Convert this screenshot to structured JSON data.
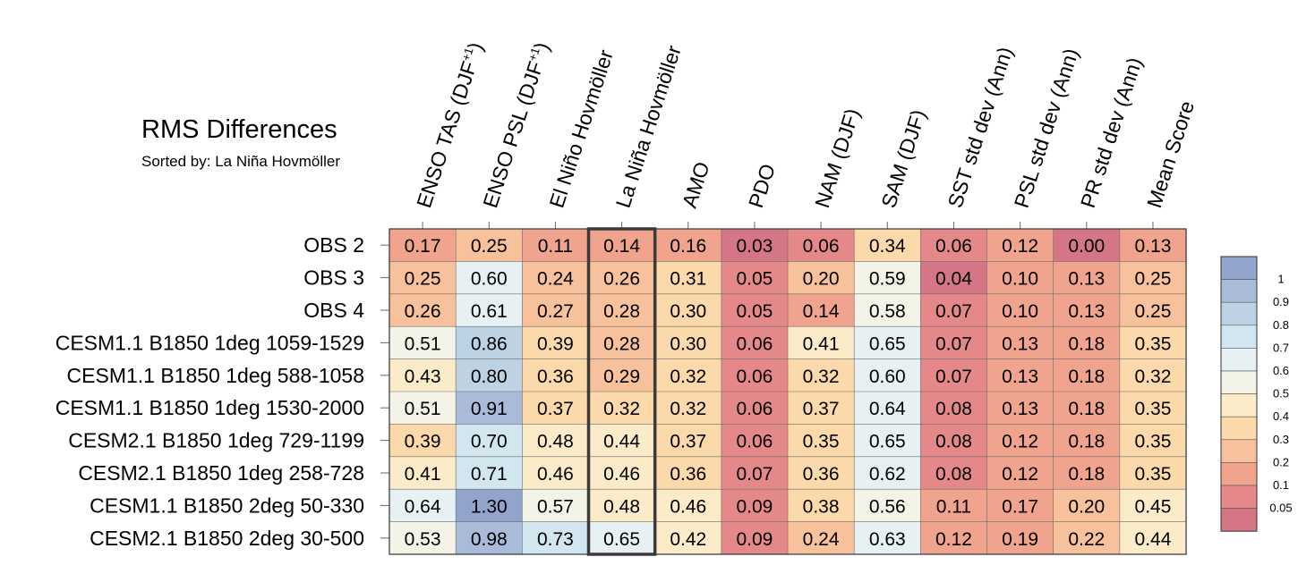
{
  "chart_data": {
    "type": "heatmap",
    "title": "RMS Differences",
    "subtitle": "Sorted by: La Niña Hovmöller",
    "highlight_column": "La Niña Hovmöller",
    "columns": [
      {
        "text": "ENSO TAS (DJF",
        "sup": "+1",
        "close": ")"
      },
      {
        "text": "ENSO PSL (DJF",
        "sup": "+1",
        "close": ")"
      },
      {
        "text": "El Niño Hovmöller",
        "sup": "",
        "close": ""
      },
      {
        "text": "La Niña Hovmöller",
        "sup": "",
        "close": ""
      },
      {
        "text": "AMO",
        "sup": "",
        "close": ""
      },
      {
        "text": "PDO",
        "sup": "",
        "close": ""
      },
      {
        "text": "NAM (DJF)",
        "sup": "",
        "close": ""
      },
      {
        "text": "SAM (DJF)",
        "sup": "",
        "close": ""
      },
      {
        "text": "SST std dev (Ann)",
        "sup": "",
        "close": ""
      },
      {
        "text": "PSL std dev (Ann)",
        "sup": "",
        "close": ""
      },
      {
        "text": "PR std dev (Ann)",
        "sup": "",
        "close": ""
      },
      {
        "text": "Mean Score",
        "sup": "",
        "close": ""
      }
    ],
    "rows": [
      "OBS 2",
      "OBS 3",
      "OBS 4",
      "CESM1.1 B1850 1deg 1059-1529",
      "CESM1.1 B1850 1deg 588-1058",
      "CESM1.1 B1850 1deg 1530-2000",
      "CESM2.1 B1850 1deg 729-1199",
      "CESM2.1 B1850 1deg 258-728",
      "CESM1.1 B1850 2deg 50-330",
      "CESM2.1 B1850 2deg 30-500"
    ],
    "values": [
      [
        "0.17",
        "0.25",
        "0.11",
        "0.14",
        "0.16",
        "0.03",
        "0.06",
        "0.34",
        "0.06",
        "0.12",
        "0.00",
        "0.13"
      ],
      [
        "0.25",
        "0.60",
        "0.24",
        "0.26",
        "0.31",
        "0.05",
        "0.20",
        "0.59",
        "0.04",
        "0.10",
        "0.13",
        "0.25"
      ],
      [
        "0.26",
        "0.61",
        "0.27",
        "0.28",
        "0.30",
        "0.05",
        "0.14",
        "0.58",
        "0.07",
        "0.10",
        "0.13",
        "0.25"
      ],
      [
        "0.51",
        "0.86",
        "0.39",
        "0.28",
        "0.30",
        "0.06",
        "0.41",
        "0.65",
        "0.07",
        "0.13",
        "0.18",
        "0.35"
      ],
      [
        "0.43",
        "0.80",
        "0.36",
        "0.29",
        "0.32",
        "0.06",
        "0.32",
        "0.60",
        "0.07",
        "0.13",
        "0.18",
        "0.32"
      ],
      [
        "0.51",
        "0.91",
        "0.37",
        "0.32",
        "0.32",
        "0.06",
        "0.37",
        "0.64",
        "0.08",
        "0.13",
        "0.18",
        "0.35"
      ],
      [
        "0.39",
        "0.70",
        "0.48",
        "0.44",
        "0.37",
        "0.06",
        "0.35",
        "0.65",
        "0.08",
        "0.12",
        "0.18",
        "0.35"
      ],
      [
        "0.41",
        "0.71",
        "0.46",
        "0.46",
        "0.36",
        "0.07",
        "0.36",
        "0.62",
        "0.08",
        "0.12",
        "0.18",
        "0.35"
      ],
      [
        "0.64",
        "1.30",
        "0.57",
        "0.48",
        "0.46",
        "0.09",
        "0.38",
        "0.56",
        "0.11",
        "0.17",
        "0.20",
        "0.45"
      ],
      [
        "0.53",
        "0.98",
        "0.73",
        "0.65",
        "0.42",
        "0.09",
        "0.24",
        "0.63",
        "0.12",
        "0.19",
        "0.22",
        "0.44"
      ]
    ],
    "colorbar": {
      "levels": [
        "1",
        "0.9",
        "0.8",
        "0.7",
        "0.6",
        "0.5",
        "0.4",
        "0.3",
        "0.2",
        "0.1",
        "0.05"
      ],
      "colors": [
        "#93a4cc",
        "#a9bbd8",
        "#bdd3e3",
        "#d2e6ef",
        "#e7f1f3",
        "#f4f3e8",
        "#fbebc8",
        "#fbd9aa",
        "#f7c19c",
        "#f0a48e",
        "#e4888a",
        "#d47685"
      ]
    }
  }
}
